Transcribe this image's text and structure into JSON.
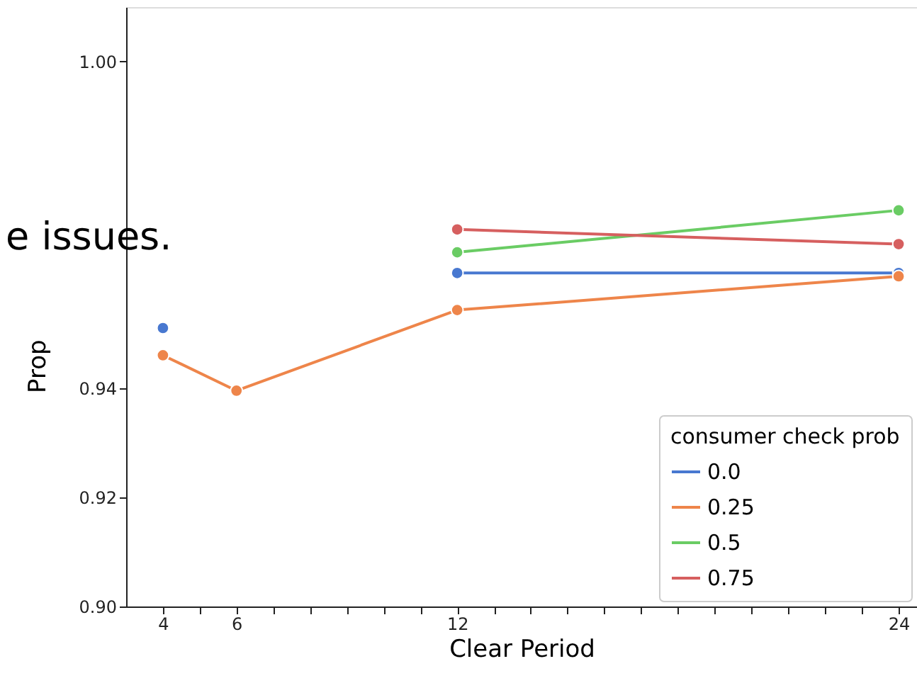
{
  "chart_data": {
    "type": "line",
    "xlabel": "Clear Period",
    "ylabel": "Prop",
    "legend_title": "consumer check prob",
    "x": [
      4,
      6,
      12,
      24
    ],
    "series": [
      {
        "name": "0.0",
        "color": "#4878d0",
        "values": [
          0.9511,
          null,
          0.9612,
          0.9612
        ]
      },
      {
        "name": "0.25",
        "color": "#ee854a",
        "values": [
          0.9461,
          0.9396,
          0.9544,
          0.9606
        ]
      },
      {
        "name": "0.5",
        "color": "#6acc64",
        "values": [
          null,
          null,
          0.965,
          0.9727
        ]
      },
      {
        "name": "0.75",
        "color": "#d65f5f",
        "values": [
          null,
          null,
          0.9692,
          0.9665
        ]
      }
    ],
    "xlim": [
      3,
      24.5
    ],
    "xticks": [
      4,
      {
        "value": 5,
        "label": null
      },
      6,
      {
        "value": 7,
        "label": null
      },
      {
        "value": 8,
        "label": null
      },
      {
        "value": 9,
        "label": null
      },
      {
        "value": 10,
        "label": null
      },
      {
        "value": 11,
        "label": null
      },
      12,
      {
        "value": 13,
        "label": null
      },
      {
        "value": 14,
        "label": null
      },
      {
        "value": 15,
        "label": null
      },
      {
        "value": 16,
        "label": null
      },
      {
        "value": 17,
        "label": null
      },
      {
        "value": 18,
        "label": null
      },
      {
        "value": 19,
        "label": null
      },
      {
        "value": 20,
        "label": null
      },
      {
        "value": 21,
        "label": null
      },
      {
        "value": 22,
        "label": null
      },
      {
        "value": 23,
        "label": null
      },
      24
    ],
    "ylim": [
      0.9,
      1.01
    ],
    "yticks": [
      {
        "value": 0.9,
        "label": "0.90"
      },
      0.92,
      0.94,
      {
        "value": 1.0,
        "label": "1.00"
      }
    ],
    "grid": false,
    "legend": "bottom right",
    "marker": "circle",
    "line_style": "solid",
    "annotations": [
      "e issues."
    ]
  }
}
